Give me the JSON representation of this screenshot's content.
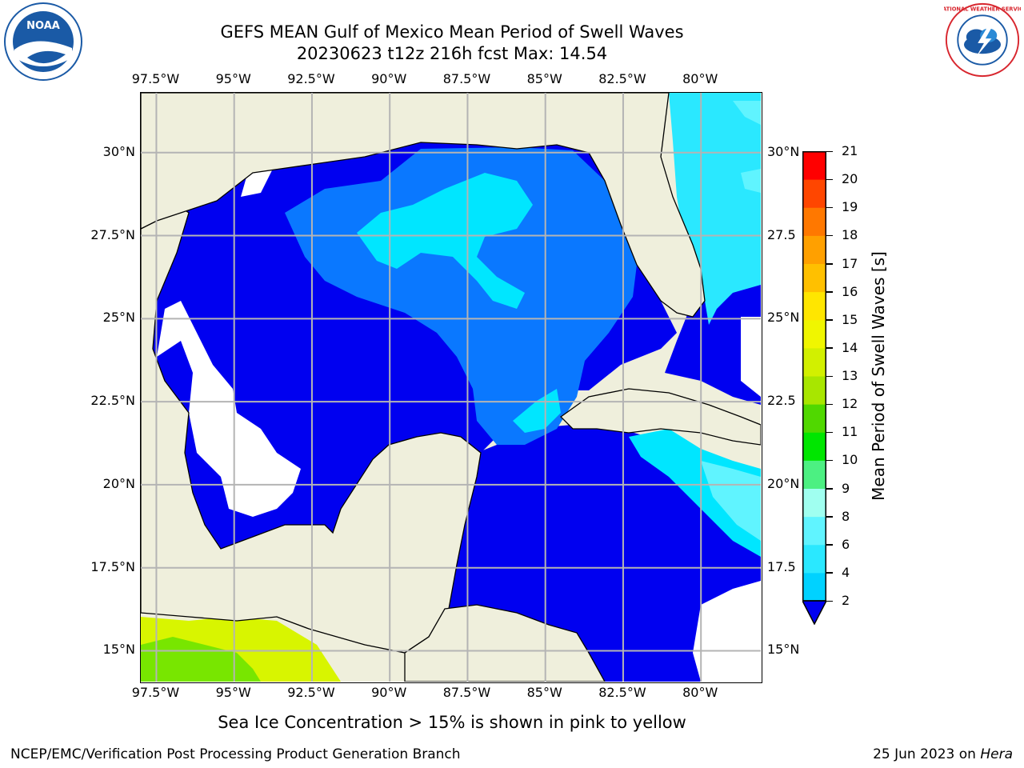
{
  "header": {
    "title_line1": "GEFS MEAN Gulf of Mexico Mean Period of Swell Waves",
    "title_line2": "20230623 t12z 216h fcst   Max: 14.54"
  },
  "axes": {
    "lon_labels": [
      "97.5°W",
      "95°W",
      "92.5°W",
      "90°W",
      "87.5°W",
      "85°W",
      "82.5°W",
      "80°W"
    ],
    "lon_values": [
      -97.5,
      -95,
      -92.5,
      -90,
      -87.5,
      -85,
      -82.5,
      -80
    ],
    "lat_labels_left": [
      "30°N",
      "27.5°N",
      "25°N",
      "22.5°N",
      "20°N",
      "17.5°N",
      "15°N"
    ],
    "lat_labels_right": [
      "30°N",
      "27.5",
      "25°N",
      "22.5",
      "20°N",
      "17.5",
      "15°N"
    ],
    "lat_values": [
      30,
      27.5,
      25,
      22.5,
      20,
      17.5,
      15
    ],
    "lon_range": [
      -98,
      -78
    ],
    "lat_range": [
      14,
      31.8
    ],
    "grid": true
  },
  "colorbar": {
    "label": "Mean Period of Swell Waves [s]",
    "ticks": [
      2,
      4,
      6,
      8,
      9,
      10,
      11,
      12,
      13,
      14,
      15,
      16,
      17,
      18,
      19,
      20,
      21
    ],
    "colors": [
      "#0a78ff",
      "#00d2ff",
      "#2ae8ff",
      "#60f4ff",
      "#a0fff0",
      "#4cf082",
      "#00e600",
      "#50d800",
      "#a8e600",
      "#d2f000",
      "#f0f600",
      "#ffe600",
      "#ffc000",
      "#ffa000",
      "#ff7800",
      "#ff4600",
      "#ff0000"
    ],
    "extend_below_color": "#0000f0"
  },
  "colors": {
    "land": "#efefdc",
    "deep_blue": "#0000f0",
    "mid_blue": "#0a78ff",
    "cyan": "#00e6ff",
    "light_cyan": "#50f0ff",
    "yellow_green": "#d8f500",
    "green": "#78e600"
  },
  "footnote": "Sea Ice Concentration > 15% is shown in pink to yellow",
  "credit_left": "NCEP/EMC/Verification Post Processing Product Generation Branch",
  "credit_right_date": "25 Jun 2023 on ",
  "credit_right_machine": "Hera",
  "logos": {
    "left": "noaa-logo",
    "right": "nws-logo",
    "left_text": "NOAA",
    "right_text": "NATIONAL WEATHER SERVICE"
  }
}
